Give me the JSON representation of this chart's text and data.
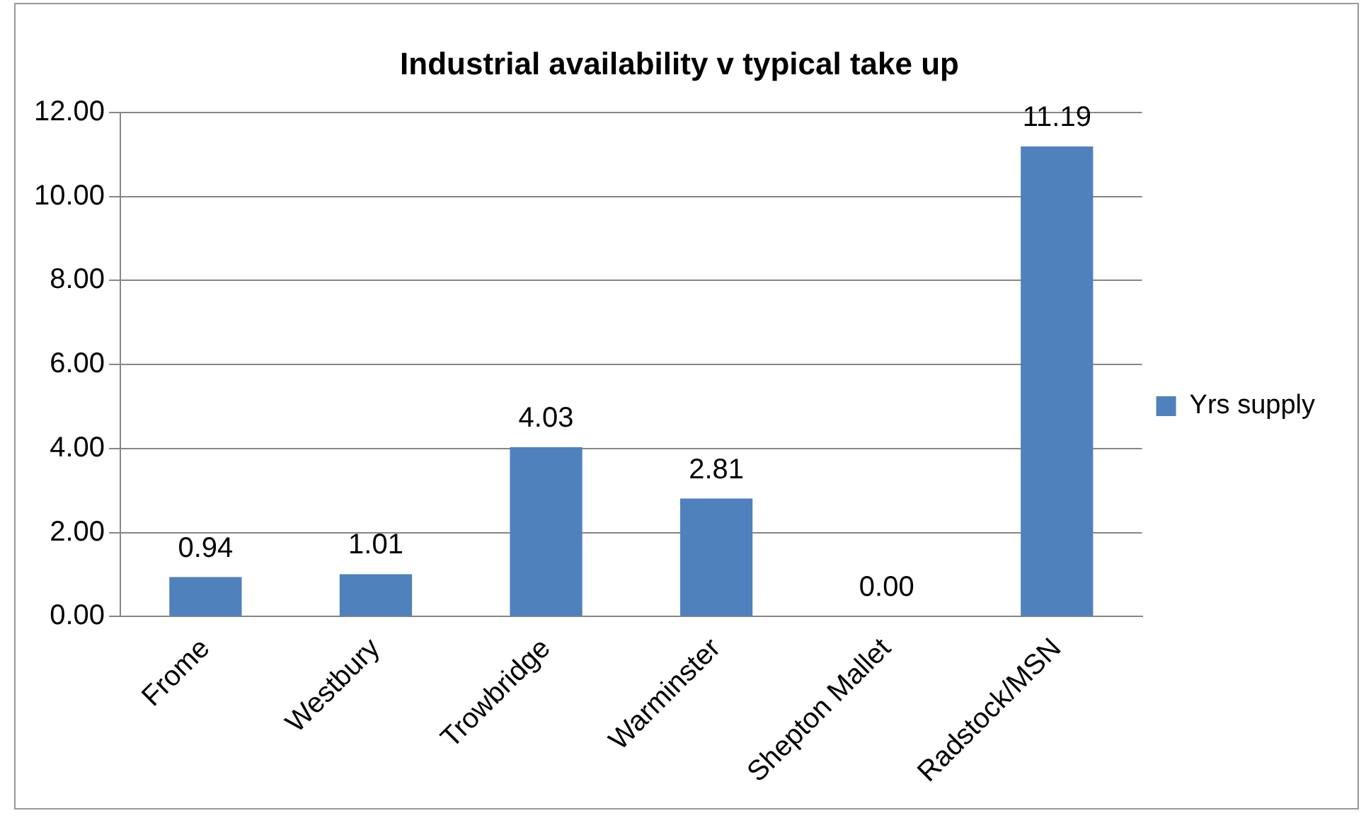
{
  "chart_data": {
    "type": "bar",
    "title": "Industrial availability v typical take up",
    "categories": [
      "Frome",
      "Westbury",
      "Trowbridge",
      "Warminster",
      "Shepton Mallet",
      "Radstock/MSN"
    ],
    "series": [
      {
        "name": "Yrs supply",
        "color": "#4f81bd",
        "values": [
          0.94,
          1.01,
          4.03,
          2.81,
          0.0,
          11.19
        ],
        "value_labels": [
          "0.94",
          "1.01",
          "4.03",
          "2.81",
          "0.00",
          "11.19"
        ]
      }
    ],
    "ylim": [
      0,
      12
    ],
    "yticks": [
      {
        "value": 0,
        "label": "0.00"
      },
      {
        "value": 2,
        "label": "2.00"
      },
      {
        "value": 4,
        "label": "4.00"
      },
      {
        "value": 6,
        "label": "6.00"
      },
      {
        "value": 8,
        "label": "8.00"
      },
      {
        "value": 10,
        "label": "10.00"
      },
      {
        "value": 12,
        "label": "12.00"
      }
    ],
    "grid": "y",
    "legend": "right"
  }
}
